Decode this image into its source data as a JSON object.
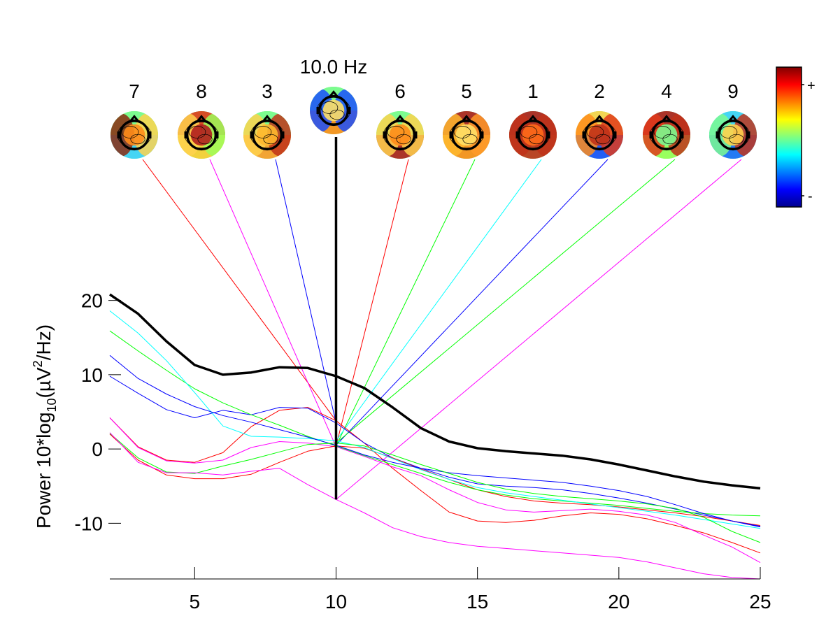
{
  "chart_data": {
    "type": "line",
    "title": "",
    "xlabel": "",
    "ylabel": "Power 10*log10(µV²/Hz)",
    "ylabel_parts": {
      "a": "Power 10*log",
      "sub": "10",
      "b": "(µV",
      "sup": "2",
      "c": "/Hz)"
    },
    "xlim": [
      2,
      25
    ],
    "ylim": [
      -17.5,
      21
    ],
    "xticks": [
      5,
      10,
      15,
      20,
      25
    ],
    "yticks": [
      20,
      10,
      0,
      -10
    ],
    "marker_frequency_label": "10.0 Hz",
    "marker_frequency": 10,
    "colorbar": {
      "top_label": "+",
      "bottom_label": "-",
      "colormap": "jet"
    },
    "x": [
      2,
      3,
      4,
      5,
      6,
      7,
      8,
      9,
      10,
      11,
      12,
      13,
      14,
      15,
      16,
      17,
      18,
      19,
      20,
      21,
      22,
      23,
      24,
      25
    ],
    "series": [
      {
        "component": "total",
        "color": "#000000",
        "width": 3.5,
        "values": [
          20.8,
          18.2,
          14.5,
          11.3,
          10.0,
          10.3,
          11.0,
          10.9,
          9.8,
          8.2,
          5.6,
          2.8,
          1.0,
          0.1,
          -0.3,
          -0.6,
          -0.9,
          -1.4,
          -2.1,
          -2.9,
          -3.7,
          -4.4,
          -4.9,
          -5.3
        ]
      },
      {
        "component": "7",
        "color": "#ff0000",
        "topo": {
          "left": "#8b2a10",
          "center": "#ff8c1a",
          "right": "#ffd24d",
          "top": "#7cfc8f",
          "bottom": "#3fd0ff"
        },
        "values": [
          4.2,
          0.3,
          -1.5,
          -1.8,
          -0.5,
          3.0,
          5.2,
          5.6,
          3.8,
          0.8,
          -2.6,
          -5.6,
          -8.5,
          -9.7,
          -9.9,
          -9.6,
          -9.0,
          -8.6,
          -8.8,
          -9.4,
          -10.3,
          -11.3,
          -12.6,
          -14.0
        ]
      },
      {
        "component": "8",
        "color": "#ff00ff",
        "topo": {
          "left": "#ffd24d",
          "center": "#b01e1e",
          "right": "#9cff5a",
          "top": "#e03a1a",
          "bottom": "#ffcc33"
        },
        "values": [
          4.2,
          0.2,
          -1.6,
          -1.9,
          -1.5,
          0.2,
          1.0,
          0.8,
          0.3,
          -1.0,
          -2.4,
          -3.6,
          -5.5,
          -7.2,
          -8.2,
          -8.5,
          -8.3,
          -8.1,
          -8.4,
          -8.9,
          -9.9,
          -11.6,
          -13.2,
          -15.3
        ]
      },
      {
        "component": "3",
        "color": "#0000ff",
        "topo": {
          "left": "#ffd24d",
          "center": "#ffb82e",
          "right": "#c0321a",
          "top": "#7cfc8f",
          "bottom": "#ff9a2a"
        },
        "values": [
          9.8,
          7.5,
          5.3,
          4.2,
          5.2,
          4.6,
          5.6,
          5.5,
          3.5,
          0.8,
          -1.2,
          -2.6,
          -3.8,
          -4.7,
          -5.0,
          -5.2,
          -5.5,
          -6.0,
          -6.6,
          -7.3,
          -8.1,
          -8.9,
          -9.7,
          -10.5
        ]
      },
      {
        "component": "6",
        "color": "#ff0000",
        "topo": {
          "left": "#ffd24d",
          "center": "#ff8c1a",
          "right": "#ffd24d",
          "top": "#7cfc8f",
          "bottom": "#b01e1e"
        },
        "values": [
          2.0,
          -1.5,
          -3.5,
          -4.0,
          -4.0,
          -3.4,
          -1.8,
          -0.3,
          0.4,
          0.1,
          -1.2,
          -2.7,
          -4.1,
          -5.5,
          -6.4,
          -7.0,
          -7.3,
          -7.5,
          -7.8,
          -8.2,
          -8.6,
          -9.1,
          -9.7,
          -10.3
        ]
      },
      {
        "component": "5",
        "color": "#00ff00",
        "topo": {
          "left": "#ffb82e",
          "center": "#ffe066",
          "right": "#ff9a2a",
          "top": "#b01e1e",
          "bottom": "#ff8c1a"
        },
        "values": [
          15.9,
          13.2,
          10.6,
          8.1,
          6.2,
          4.6,
          3.2,
          1.7,
          0.4,
          -0.9,
          -2.1,
          -3.3,
          -4.5,
          -5.5,
          -6.2,
          -6.7,
          -7.0,
          -7.3,
          -7.6,
          -8.0,
          -8.4,
          -8.7,
          -8.9,
          -9.0
        ]
      },
      {
        "component": "1",
        "color": "#00ffff",
        "topo": {
          "left": "#c0321a",
          "center": "#ff6a1a",
          "right": "#c0321a",
          "top": "#b01e1e",
          "bottom": "#c0321a"
        },
        "values": [
          18.6,
          15.6,
          11.9,
          7.6,
          3.1,
          1.7,
          1.6,
          1.4,
          1.1,
          0.2,
          -1.3,
          -2.8,
          -4.1,
          -5.2,
          -5.9,
          -6.4,
          -6.9,
          -7.4,
          -7.9,
          -8.4,
          -8.9,
          -9.5,
          -10.1,
          -10.7
        ]
      },
      {
        "component": "2",
        "color": "#0000ff",
        "topo": {
          "left": "#ff8c1a",
          "center": "#c0321a",
          "right": "#e03a1a",
          "top": "#ffd24d",
          "bottom": "#1a4dff"
        },
        "values": [
          12.6,
          9.5,
          7.4,
          5.7,
          4.5,
          3.6,
          2.6,
          1.6,
          0.5,
          -0.8,
          -1.8,
          -2.6,
          -3.2,
          -3.6,
          -3.9,
          -4.2,
          -4.5,
          -5.0,
          -5.6,
          -6.4,
          -7.5,
          -8.7,
          -9.7,
          -10.4
        ]
      },
      {
        "component": "4",
        "color": "#00ff00",
        "topo": {
          "left": "#e03a1a",
          "center": "#7cfc8f",
          "right": "#c0321a",
          "top": "#b01e1e",
          "bottom": "#9cff5a"
        },
        "values": [
          2.1,
          -1.2,
          -3.1,
          -3.3,
          -2.3,
          -1.4,
          -0.4,
          0.6,
          0.8,
          0.4,
          -0.8,
          -2.1,
          -3.3,
          -4.5,
          -5.4,
          -6.0,
          -6.4,
          -6.7,
          -7.0,
          -7.4,
          -8.0,
          -9.2,
          -11.1,
          -12.6
        ]
      },
      {
        "component": "9",
        "color": "#ff00ff",
        "topo": {
          "left": "#7cfc8f",
          "center": "#ffd24d",
          "right": "#c0321a",
          "top": "#3fd0ff",
          "bottom": "#1a6dff"
        },
        "values": [
          2.2,
          -1.8,
          -3.2,
          -3.2,
          -3.5,
          -3.0,
          -2.6,
          -4.8,
          -6.8,
          -8.6,
          -10.6,
          -11.8,
          -12.6,
          -13.1,
          -13.4,
          -13.7,
          -14.0,
          -14.3,
          -14.6,
          -15.2,
          -16.0,
          -16.8,
          -17.3,
          -17.5
        ]
      }
    ]
  }
}
